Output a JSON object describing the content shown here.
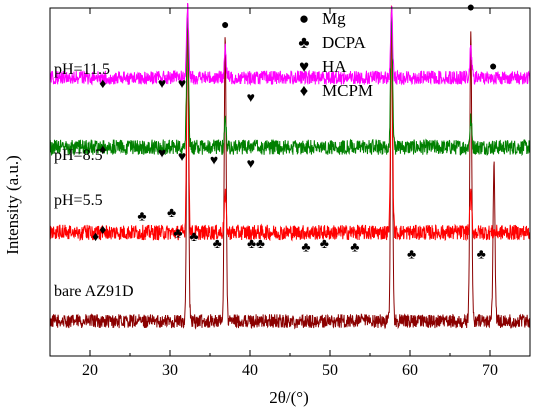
{
  "chart_data": {
    "type": "line",
    "title": "",
    "xlabel": "2θ/(°)",
    "ylabel": "Intensity (a.u.)",
    "xlim": [
      15,
      75
    ],
    "xticks": [
      20,
      30,
      40,
      50,
      60,
      70
    ],
    "xtick_labels": [
      "20",
      "30",
      "40",
      "50",
      "60",
      "70"
    ],
    "yticks": [],
    "grid": false,
    "legend": {
      "placement": "top-center",
      "entries": [
        {
          "symbol": "●",
          "label": "Mg"
        },
        {
          "symbol": "♣",
          "label": "DCPA"
        },
        {
          "symbol": "♥",
          "label": "HA"
        },
        {
          "symbol": "♦",
          "label": "MCPM"
        }
      ]
    },
    "series": [
      {
        "name": "bare AZ91D",
        "color": "#8b0000",
        "base": 0.1,
        "noise": 0.02,
        "peaks": [
          [
            32.2,
            1.0
          ],
          [
            36.9,
            0.92
          ],
          [
            57.7,
            1.0
          ],
          [
            67.6,
            0.92
          ],
          [
            69.0,
            0.1
          ],
          [
            70.5,
            0.55
          ]
        ]
      },
      {
        "name": "pH=5.5",
        "color": "#ff0000",
        "base": 0.355,
        "noise": 0.022,
        "peaks": [
          [
            20.8,
            0.04
          ],
          [
            21.6,
            0.07
          ],
          [
            26.5,
            0.11
          ],
          [
            30.2,
            0.08
          ],
          [
            31.0,
            0.05
          ],
          [
            32.2,
            1.0
          ],
          [
            33.0,
            0.07
          ],
          [
            36.9,
            0.46
          ],
          [
            46.0,
            0.04
          ],
          [
            48.5,
            0.05
          ],
          [
            53.1,
            0.03
          ],
          [
            57.7,
            1.0
          ],
          [
            60.2,
            0.03
          ],
          [
            67.6,
            0.46
          ],
          [
            68.9,
            0.04
          ],
          [
            70.5,
            0.1
          ]
        ]
      },
      {
        "name": "pH=8.5",
        "color": "#008000",
        "base": 0.6,
        "noise": 0.022,
        "peaks": [
          [
            21.6,
            0.06
          ],
          [
            32.2,
            1.0
          ],
          [
            36.9,
            0.68
          ],
          [
            57.7,
            1.0
          ],
          [
            67.6,
            0.68
          ],
          [
            69.0,
            0.06
          ],
          [
            70.5,
            0.26
          ]
        ]
      },
      {
        "name": "pH=11.5",
        "color": "#ff00ff",
        "base": 0.8,
        "noise": 0.02,
        "peaks": [
          [
            32.2,
            1.0
          ],
          [
            36.9,
            0.88
          ],
          [
            57.7,
            1.0
          ],
          [
            67.6,
            0.88
          ],
          [
            69.0,
            0.04
          ],
          [
            70.5,
            0.3
          ]
        ]
      }
    ],
    "sample_labels": [
      "pH=11.5",
      "pH=8.5",
      "pH=5.5",
      "bare AZ91D"
    ],
    "peak_markers": [
      {
        "symbol": "●",
        "x": 32.2,
        "level": 1.02
      },
      {
        "symbol": "●",
        "x": 36.9,
        "level": 0.94
      },
      {
        "symbol": "●",
        "x": 57.7,
        "level": 1.02
      },
      {
        "symbol": "●",
        "x": 67.6,
        "level": 0.99
      },
      {
        "symbol": "●",
        "x": 70.4,
        "level": 0.82
      },
      {
        "symbol": "♦",
        "x": 21.6,
        "level": 0.77
      },
      {
        "symbol": "♥",
        "x": 29.0,
        "level": 0.77
      },
      {
        "symbol": "♥",
        "x": 31.5,
        "level": 0.77
      },
      {
        "symbol": "♥",
        "x": 40.1,
        "level": 0.73
      },
      {
        "symbol": "♦",
        "x": 21.6,
        "level": 0.58
      },
      {
        "symbol": "♥",
        "x": 29.0,
        "level": 0.57
      },
      {
        "symbol": "♥",
        "x": 31.5,
        "level": 0.56
      },
      {
        "symbol": "♥",
        "x": 35.5,
        "level": 0.55
      },
      {
        "symbol": "♥",
        "x": 40.1,
        "level": 0.54
      },
      {
        "symbol": "♦",
        "x": 20.7,
        "level": 0.33
      },
      {
        "symbol": "♦",
        "x": 21.6,
        "level": 0.35
      },
      {
        "symbol": "♣",
        "x": 26.5,
        "level": 0.39
      },
      {
        "symbol": "♣",
        "x": 30.2,
        "level": 0.4
      },
      {
        "symbol": "♣",
        "x": 31.0,
        "level": 0.34
      },
      {
        "symbol": "♣",
        "x": 33.0,
        "level": 0.33
      },
      {
        "symbol": "♣",
        "x": 35.9,
        "level": 0.31
      },
      {
        "symbol": "♣",
        "x": 40.2,
        "level": 0.31
      },
      {
        "symbol": "♣",
        "x": 41.3,
        "level": 0.31
      },
      {
        "symbol": "♣",
        "x": 47.0,
        "level": 0.3
      },
      {
        "symbol": "♣",
        "x": 49.3,
        "level": 0.31
      },
      {
        "symbol": "♣",
        "x": 53.1,
        "level": 0.3
      },
      {
        "symbol": "♣",
        "x": 60.2,
        "level": 0.28
      },
      {
        "symbol": "♣",
        "x": 68.9,
        "level": 0.28
      }
    ]
  }
}
